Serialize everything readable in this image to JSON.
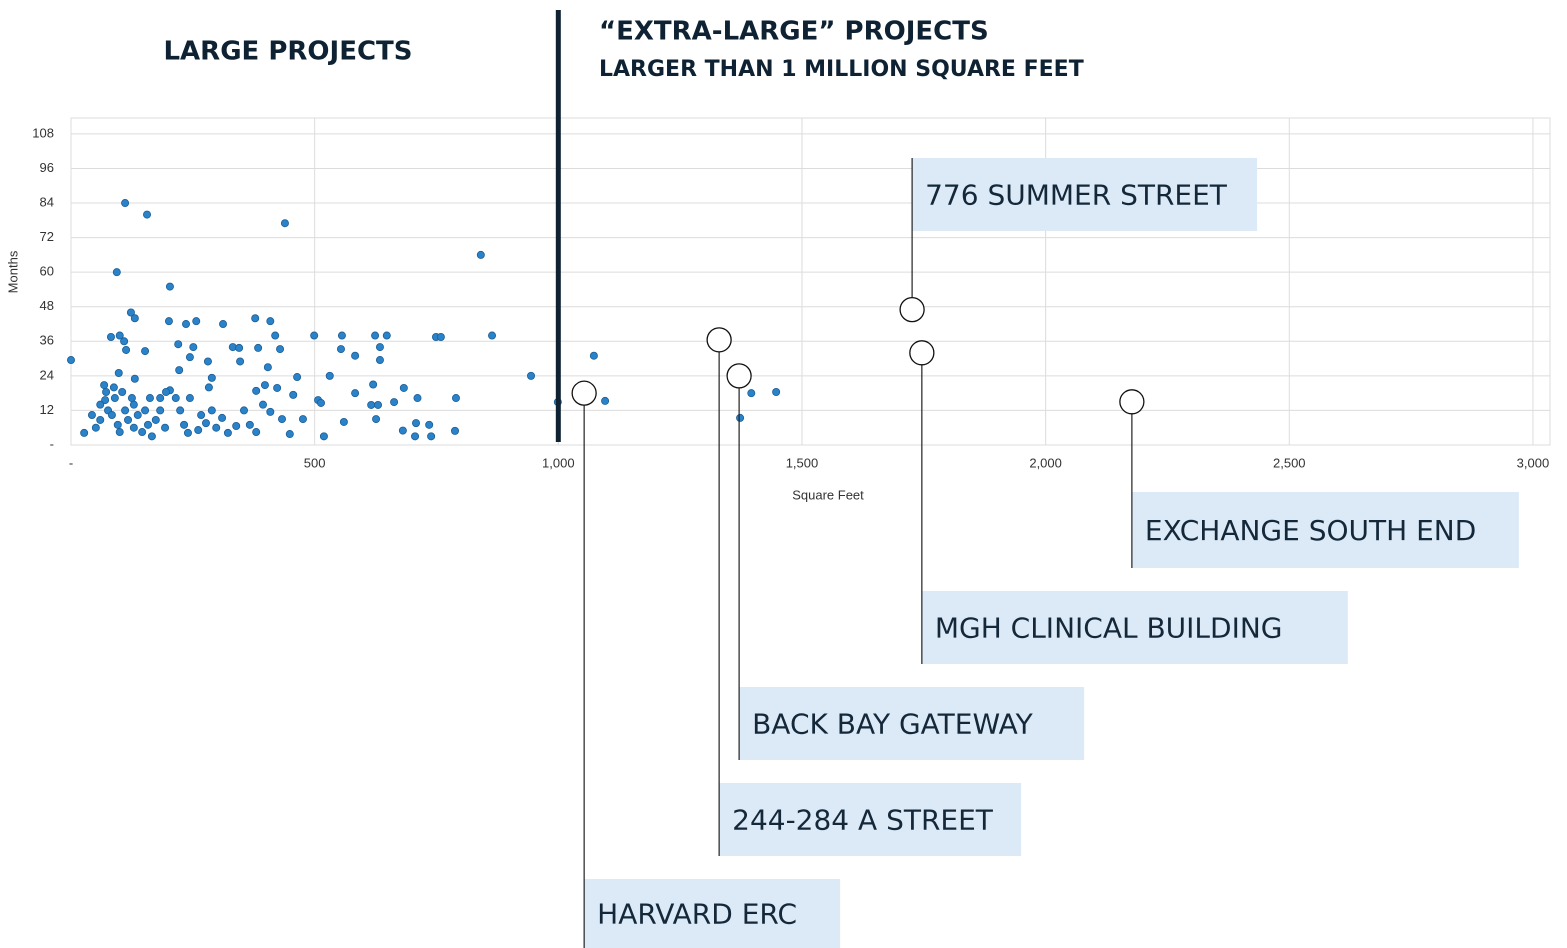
{
  "chart_data": {
    "type": "scatter",
    "title": "LARGE PROJECTS",
    "right_title": "“EXTRA-LARGE” PROJECTS",
    "right_subtitle": "LARGER THAN 1 MILLION SQUARE FEET",
    "x_label": "Square Feet",
    "y_label": "Months",
    "color": "#2a82c9",
    "grid": true,
    "xlim": [
      0,
      3035
    ],
    "ylim": [
      0,
      112
    ],
    "xticks": [
      {
        "value": 0,
        "label": "-"
      },
      500,
      {
        "value": 1000,
        "label": "1,000"
      },
      {
        "value": 1500,
        "label": "1,500"
      },
      {
        "value": 2000,
        "label": "2,000"
      },
      {
        "value": 2500,
        "label": "2,500"
      },
      {
        "value": 3000,
        "label": "3,000"
      }
    ],
    "yticks": [
      {
        "value": 0,
        "label": "-"
      },
      12,
      24,
      36,
      48,
      60,
      72,
      84,
      96,
      108
    ],
    "reference_line": 1000,
    "x": [
      0,
      111,
      156,
      439,
      94,
      203,
      841,
      123,
      131,
      257,
      201,
      236,
      312,
      378,
      409,
      419,
      499,
      556,
      624,
      648,
      749,
      759,
      864,
      82,
      100,
      109,
      113,
      152,
      220,
      251,
      332,
      345,
      384,
      429,
      554,
      634,
      583,
      634,
      244,
      281,
      347,
      404,
      222,
      1073,
      944,
      98,
      131,
      531,
      464,
      289,
      283,
      398,
      423,
      620,
      683,
      711,
      790,
      583,
      380,
      456,
      507,
      513,
      616,
      630,
      663,
      626,
      560,
      476,
      433,
      708,
      735,
      706,
      739,
      681,
      788,
      519,
      449,
      999,
      1096,
      1396,
      1447,
      1373,
      27,
      51,
      60,
      70,
      60,
      76,
      84,
      90,
      96,
      100,
      111,
      117,
      125,
      129,
      137,
      146,
      152,
      158,
      166,
      174,
      183,
      193,
      203,
      215,
      224,
      232,
      240,
      244,
      261,
      267,
      277,
      289,
      298,
      310,
      322,
      339,
      355,
      367,
      380,
      394,
      409,
      43,
      72,
      88,
      68,
      105,
      162,
      183,
      195,
      129
    ],
    "values": [
      29.5,
      84,
      80,
      77,
      60,
      55,
      66,
      46,
      44,
      43,
      43,
      42,
      42,
      44,
      43,
      38,
      38,
      38,
      38,
      38,
      37.5,
      37.5,
      38,
      37.5,
      38,
      36,
      33,
      32.6,
      35,
      34,
      34,
      33.7,
      33.7,
      33.3,
      33.3,
      34,
      31,
      29.5,
      30.5,
      29,
      29,
      27,
      26,
      31,
      24,
      25,
      23,
      24,
      23.6,
      23.3,
      20,
      20.8,
      19.8,
      21,
      19.8,
      16.3,
      16.3,
      18,
      18.8,
      17.4,
      15.6,
      14.6,
      13.9,
      13.9,
      14.9,
      9,
      8,
      9,
      9,
      7.6,
      7,
      3,
      3,
      5,
      4.9,
      3,
      3.8,
      14.9,
      15.3,
      18,
      18.4,
      9.4,
      4.2,
      6,
      8.7,
      15.6,
      14,
      12,
      10.4,
      16.3,
      7,
      4.5,
      12,
      8.7,
      16.3,
      6,
      10.4,
      4.5,
      12,
      7,
      3,
      8.7,
      12,
      6,
      19,
      16.3,
      12,
      7,
      4.2,
      16.3,
      5.2,
      10.4,
      7.6,
      12,
      6,
      9.4,
      4.2,
      6.6,
      12,
      7,
      4.5,
      14,
      11.5,
      10.4,
      18.4,
      20,
      20.8,
      18.4,
      16.3,
      16.3,
      18.4,
      14
    ],
    "highlights": [
      {
        "label": "776 SUMMER STREET",
        "x": 1726,
        "y": 47
      },
      {
        "label": "EXCHANGE SOUTH END",
        "x": 2177,
        "y": 15
      },
      {
        "label": "MGH CLINICAL BUILDING",
        "x": 1746,
        "y": 32
      },
      {
        "label": "BACK BAY GATEWAY",
        "x": 1371,
        "y": 24
      },
      {
        "label": "244-284 A STREET",
        "x": 1330,
        "y": 36.5
      },
      {
        "label": "HARVARD ERC",
        "x": 1053,
        "y": 18
      }
    ]
  }
}
